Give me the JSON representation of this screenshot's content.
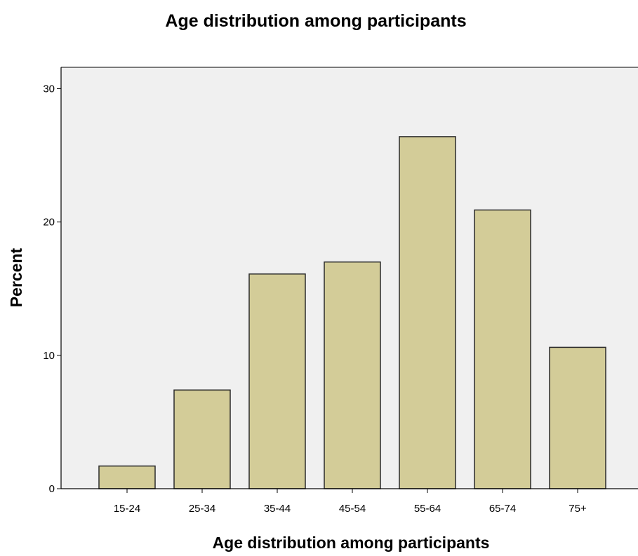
{
  "chart_data": {
    "type": "bar",
    "title": "Age distribution among participants",
    "xlabel": "Age distribution among participants",
    "ylabel": "Percent",
    "categories": [
      "15-24",
      "25-34",
      "35-44",
      "45-54",
      "55-64",
      "65-74",
      "75+"
    ],
    "values": [
      1.7,
      7.4,
      16.1,
      17.0,
      26.4,
      20.9,
      10.6
    ],
    "ylim": [
      0,
      31.6
    ],
    "yticks": [
      0,
      10,
      20,
      30
    ],
    "grid": false,
    "legend": "none",
    "colors": {
      "bar_fill": "#d3cc98",
      "bar_stroke": "#2b2b2b",
      "plot_background": "#f0f0f0",
      "axis": "#000000"
    }
  }
}
